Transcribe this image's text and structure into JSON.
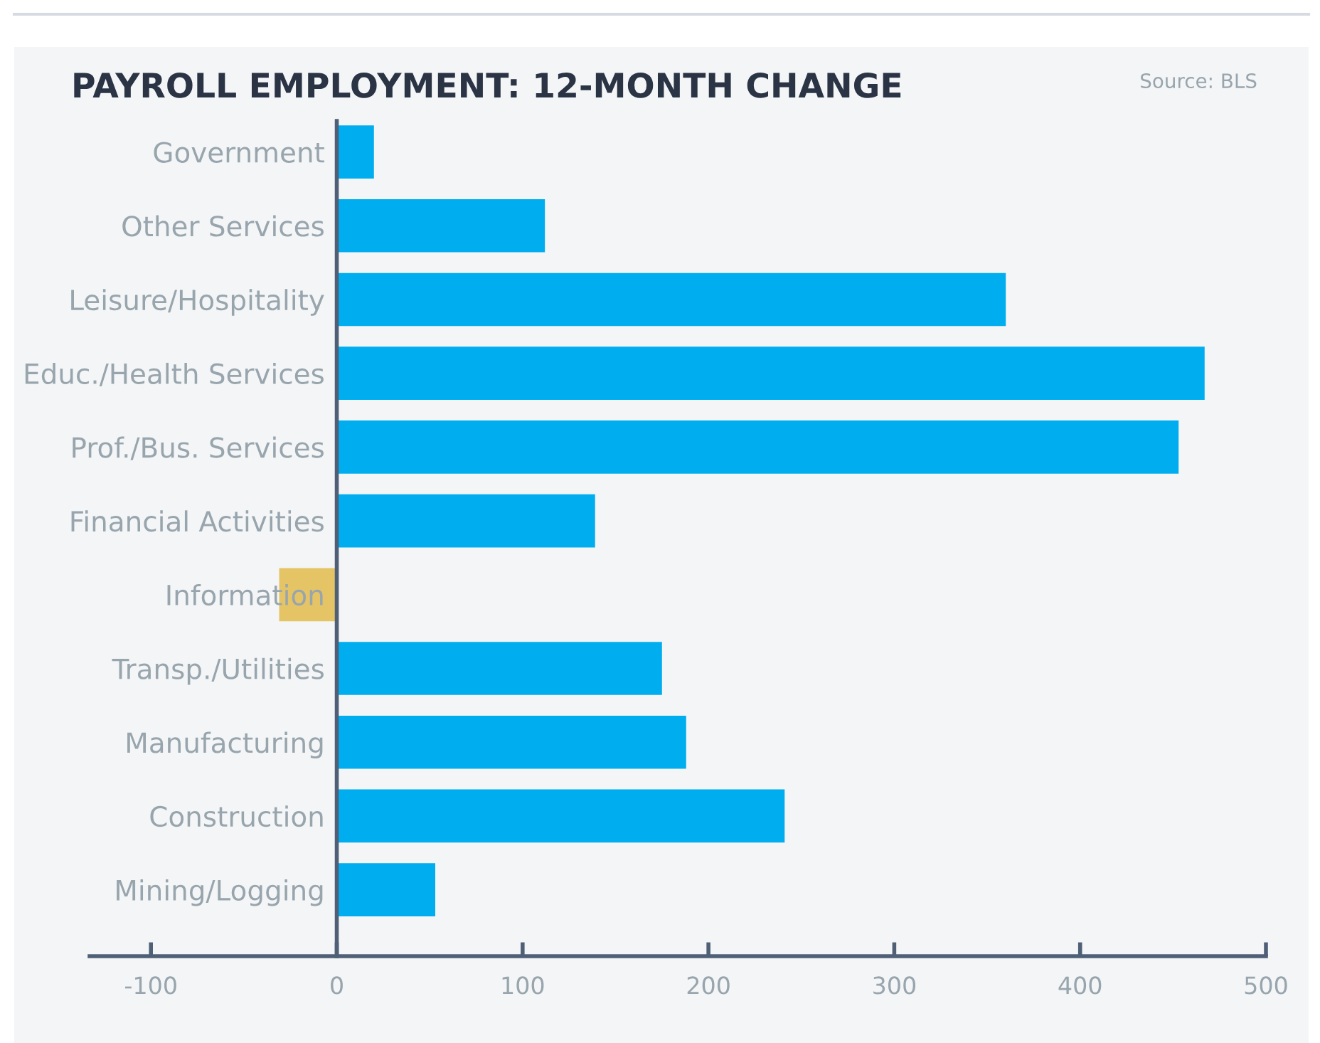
{
  "chart_data": {
    "type": "bar",
    "orientation": "horizontal",
    "title": "PAYROLL EMPLOYMENT: 12-MONTH CHANGE",
    "annotations": [
      "Source: BLS"
    ],
    "categories": [
      "Government",
      "Other Services",
      "Leisure/Hospitality",
      "Educ./Health Services",
      "Prof./Bus. Services",
      "Financial Activities",
      "Information",
      "Transp./Utilities",
      "Manufacturing",
      "Construction",
      "Mining/Logging"
    ],
    "values": [
      20,
      112,
      360,
      467,
      453,
      139,
      -31,
      175,
      188,
      241,
      53
    ],
    "colors": [
      "#00aeef",
      "#00aeef",
      "#00aeef",
      "#00aeef",
      "#00aeef",
      "#00aeef",
      "#e5c465",
      "#00aeef",
      "#00aeef",
      "#00aeef",
      "#00aeef"
    ],
    "xlim": [
      -133,
      500
    ],
    "xticks": [
      -100,
      0,
      100,
      200,
      300,
      400,
      500
    ],
    "grid": false,
    "legend": false
  }
}
